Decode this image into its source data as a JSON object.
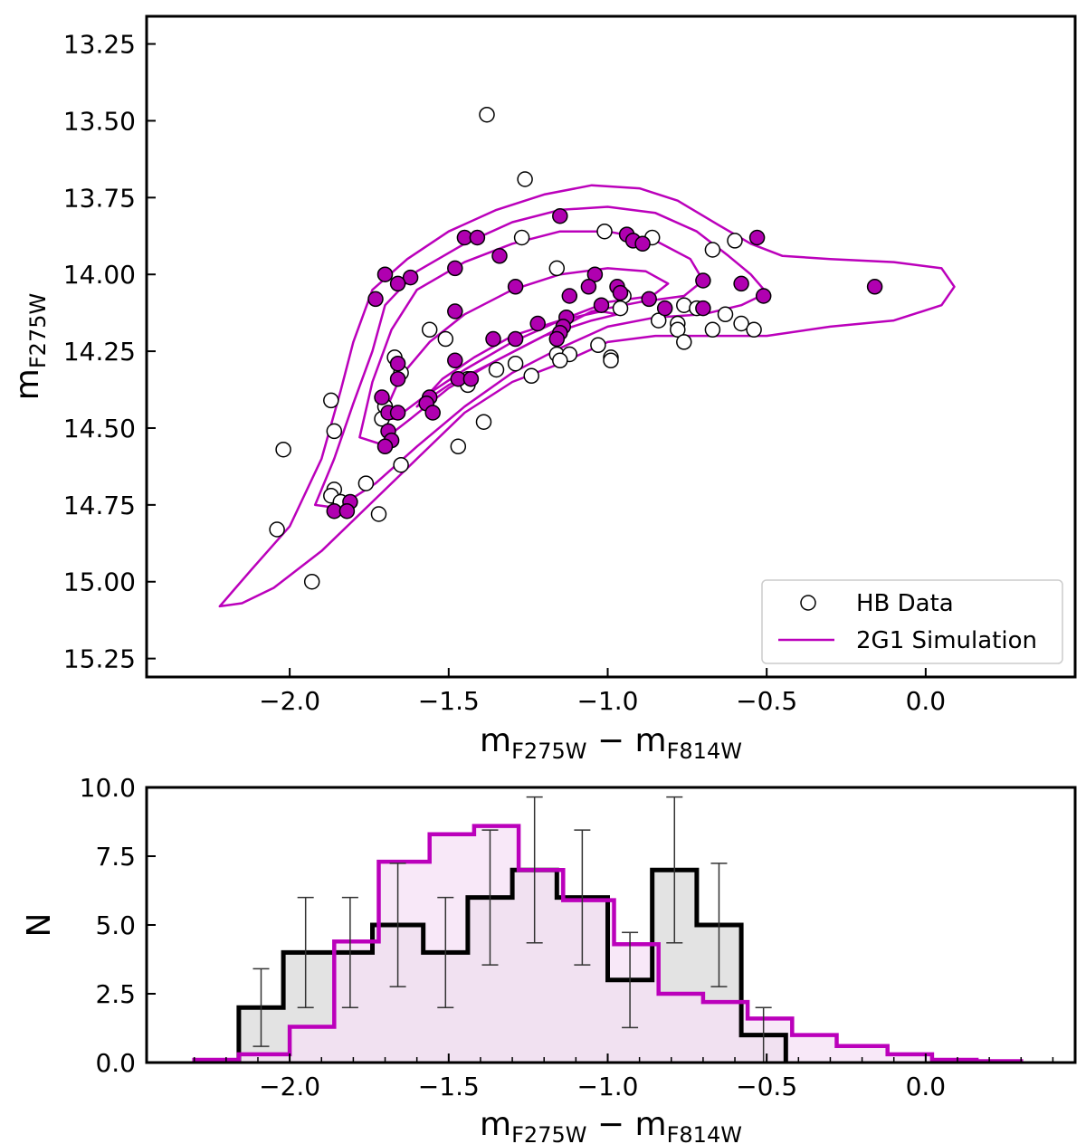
{
  "chart_data": [
    {
      "type": "scatter",
      "title": "",
      "xlabel": "m_F275W − m_F814W",
      "xlabel_main": "m",
      "xlabel_sub1": "F275W",
      "xlabel_sep": " − ",
      "xlabel_sub2": "F814W",
      "ylabel_main": "m",
      "ylabel_sub": "F275W",
      "xlim": [
        -2.45,
        0.47
      ],
      "ylim": [
        15.31,
        13.16
      ],
      "y_inverted": true,
      "xticks": [
        -2.0,
        -1.5,
        -1.0,
        -0.5,
        0.0
      ],
      "xtick_labels": [
        "−2.0",
        "−1.5",
        "−1.0",
        "−0.5",
        "0.0"
      ],
      "yticks": [
        13.25,
        13.5,
        13.75,
        14.0,
        14.25,
        14.5,
        14.75,
        15.0,
        15.25
      ],
      "ytick_labels": [
        "13.25",
        "13.50",
        "13.75",
        "14.00",
        "14.25",
        "14.50",
        "14.75",
        "15.00",
        "15.25"
      ],
      "legend": {
        "placement": "bottom-right",
        "entries": [
          {
            "label": "HB Data",
            "marker": "open-circle"
          },
          {
            "label": "2G1 Simulation",
            "marker": "line",
            "color": "#bb00bb"
          }
        ]
      },
      "colors": {
        "filled": "#b000b0",
        "contour": "#bb00bb"
      },
      "hb_open": [
        [
          -1.38,
          13.48
        ],
        [
          -1.26,
          13.69
        ],
        [
          -1.01,
          13.86
        ],
        [
          -1.27,
          13.88
        ],
        [
          -0.86,
          13.88
        ],
        [
          -0.6,
          13.89
        ],
        [
          -0.67,
          13.92
        ],
        [
          -1.16,
          13.98
        ],
        [
          -0.95,
          14.07
        ],
        [
          -0.96,
          14.11
        ],
        [
          -0.76,
          14.1
        ],
        [
          -0.72,
          14.11
        ],
        [
          -0.63,
          14.13
        ],
        [
          -0.84,
          14.15
        ],
        [
          -0.78,
          14.16
        ],
        [
          -0.58,
          14.16
        ],
        [
          -0.78,
          14.18
        ],
        [
          -0.67,
          14.18
        ],
        [
          -0.54,
          14.18
        ],
        [
          -1.56,
          14.18
        ],
        [
          -1.51,
          14.21
        ],
        [
          -0.76,
          14.22
        ],
        [
          -1.03,
          14.23
        ],
        [
          -1.16,
          14.26
        ],
        [
          -1.12,
          14.26
        ],
        [
          -1.15,
          14.28
        ],
        [
          -0.99,
          14.27
        ],
        [
          -0.99,
          14.28
        ],
        [
          -1.67,
          14.27
        ],
        [
          -1.65,
          14.32
        ],
        [
          -1.29,
          14.29
        ],
        [
          -1.35,
          14.31
        ],
        [
          -1.24,
          14.33
        ],
        [
          -1.44,
          14.34
        ],
        [
          -1.44,
          14.36
        ],
        [
          -1.87,
          14.41
        ],
        [
          -1.7,
          14.43
        ],
        [
          -1.71,
          14.47
        ],
        [
          -1.39,
          14.48
        ],
        [
          -1.86,
          14.51
        ],
        [
          -1.47,
          14.56
        ],
        [
          -2.02,
          14.57
        ],
        [
          -1.65,
          14.62
        ],
        [
          -1.76,
          14.68
        ],
        [
          -1.86,
          14.7
        ],
        [
          -1.87,
          14.72
        ],
        [
          -1.84,
          14.74
        ],
        [
          -1.72,
          14.78
        ],
        [
          -2.04,
          14.83
        ],
        [
          -1.93,
          15.0
        ]
      ],
      "hb_filled": [
        [
          -1.15,
          13.81
        ],
        [
          -0.94,
          13.87
        ],
        [
          -1.45,
          13.88
        ],
        [
          -1.41,
          13.88
        ],
        [
          -0.92,
          13.89
        ],
        [
          -0.89,
          13.9
        ],
        [
          -0.53,
          13.88
        ],
        [
          -1.34,
          13.94
        ],
        [
          -1.48,
          13.98
        ],
        [
          -1.7,
          14.0
        ],
        [
          -1.62,
          14.01
        ],
        [
          -1.66,
          14.03
        ],
        [
          -1.04,
          14.0
        ],
        [
          -0.7,
          14.02
        ],
        [
          -0.58,
          14.03
        ],
        [
          -1.29,
          14.04
        ],
        [
          -1.06,
          14.04
        ],
        [
          -0.97,
          14.04
        ],
        [
          -0.96,
          14.06
        ],
        [
          -0.51,
          14.07
        ],
        [
          -1.73,
          14.08
        ],
        [
          -1.12,
          14.07
        ],
        [
          -0.16,
          14.04
        ],
        [
          -0.87,
          14.08
        ],
        [
          -1.02,
          14.1
        ],
        [
          -0.82,
          14.11
        ],
        [
          -0.7,
          14.11
        ],
        [
          -1.48,
          14.12
        ],
        [
          -1.13,
          14.14
        ],
        [
          -1.14,
          14.17
        ],
        [
          -1.22,
          14.16
        ],
        [
          -1.15,
          14.19
        ],
        [
          -1.36,
          14.21
        ],
        [
          -1.29,
          14.21
        ],
        [
          -1.16,
          14.21
        ],
        [
          -1.48,
          14.28
        ],
        [
          -1.66,
          14.29
        ],
        [
          -1.47,
          14.34
        ],
        [
          -1.43,
          14.34
        ],
        [
          -1.66,
          14.34
        ],
        [
          -1.71,
          14.4
        ],
        [
          -1.56,
          14.4
        ],
        [
          -1.57,
          14.42
        ],
        [
          -1.69,
          14.45
        ],
        [
          -1.66,
          14.45
        ],
        [
          -1.55,
          14.45
        ],
        [
          -1.69,
          14.51
        ],
        [
          -1.68,
          14.54
        ],
        [
          -1.7,
          14.56
        ],
        [
          -1.81,
          14.74
        ],
        [
          -1.86,
          14.77
        ],
        [
          -1.82,
          14.77
        ]
      ],
      "contours": [
        [
          [
            -2.22,
            15.08
          ],
          [
            -2.12,
            14.96
          ],
          [
            -2.0,
            14.82
          ],
          [
            -1.9,
            14.6
          ],
          [
            -1.84,
            14.38
          ],
          [
            -1.8,
            14.22
          ],
          [
            -1.74,
            14.05
          ],
          [
            -1.63,
            13.95
          ],
          [
            -1.5,
            13.86
          ],
          [
            -1.35,
            13.79
          ],
          [
            -1.2,
            13.74
          ],
          [
            -1.05,
            13.71
          ],
          [
            -0.9,
            13.72
          ],
          [
            -0.78,
            13.76
          ],
          [
            -0.65,
            13.84
          ],
          [
            -0.55,
            13.9
          ],
          [
            -0.45,
            13.94
          ],
          [
            -0.3,
            13.95
          ],
          [
            -0.1,
            13.96
          ],
          [
            0.05,
            13.98
          ],
          [
            0.09,
            14.04
          ],
          [
            0.05,
            14.1
          ],
          [
            -0.1,
            14.15
          ],
          [
            -0.3,
            14.17
          ],
          [
            -0.5,
            14.2
          ],
          [
            -0.7,
            14.2
          ],
          [
            -0.85,
            14.2
          ],
          [
            -1.0,
            14.22
          ],
          [
            -1.15,
            14.29
          ],
          [
            -1.3,
            14.35
          ],
          [
            -1.45,
            14.45
          ],
          [
            -1.6,
            14.6
          ],
          [
            -1.75,
            14.75
          ],
          [
            -1.9,
            14.9
          ],
          [
            -2.05,
            15.02
          ],
          [
            -2.15,
            15.07
          ],
          [
            -2.22,
            15.08
          ]
        ],
        [
          [
            -1.92,
            14.75
          ],
          [
            -1.86,
            14.6
          ],
          [
            -1.8,
            14.42
          ],
          [
            -1.74,
            14.25
          ],
          [
            -1.7,
            14.1
          ],
          [
            -1.6,
            13.99
          ],
          [
            -1.45,
            13.9
          ],
          [
            -1.3,
            13.83
          ],
          [
            -1.15,
            13.79
          ],
          [
            -1.0,
            13.78
          ],
          [
            -0.85,
            13.8
          ],
          [
            -0.72,
            13.86
          ],
          [
            -0.62,
            13.94
          ],
          [
            -0.55,
            14.0
          ],
          [
            -0.5,
            14.06
          ],
          [
            -0.58,
            14.1
          ],
          [
            -0.7,
            14.13
          ],
          [
            -0.85,
            14.14
          ],
          [
            -1.0,
            14.17
          ],
          [
            -1.15,
            14.24
          ],
          [
            -1.3,
            14.32
          ],
          [
            -1.45,
            14.43
          ],
          [
            -1.6,
            14.56
          ],
          [
            -1.73,
            14.68
          ],
          [
            -1.85,
            14.76
          ],
          [
            -1.92,
            14.75
          ]
        ],
        [
          [
            -1.78,
            14.53
          ],
          [
            -1.74,
            14.35
          ],
          [
            -1.68,
            14.18
          ],
          [
            -1.6,
            14.05
          ],
          [
            -1.45,
            13.96
          ],
          [
            -1.3,
            13.9
          ],
          [
            -1.15,
            13.86
          ],
          [
            -1.0,
            13.86
          ],
          [
            -0.85,
            13.89
          ],
          [
            -0.74,
            13.95
          ],
          [
            -0.7,
            14.02
          ],
          [
            -0.76,
            14.07
          ],
          [
            -0.9,
            14.09
          ],
          [
            -1.05,
            14.12
          ],
          [
            -1.2,
            14.2
          ],
          [
            -1.35,
            14.28
          ],
          [
            -1.5,
            14.37
          ],
          [
            -1.62,
            14.47
          ],
          [
            -1.72,
            14.55
          ],
          [
            -1.78,
            14.53
          ]
        ],
        [
          [
            -1.71,
            14.47
          ],
          [
            -1.65,
            14.33
          ],
          [
            -1.56,
            14.22
          ],
          [
            -1.45,
            14.13
          ],
          [
            -1.3,
            14.05
          ],
          [
            -1.15,
            14.0
          ],
          [
            -1.0,
            13.98
          ],
          [
            -0.88,
            13.99
          ],
          [
            -0.81,
            14.03
          ],
          [
            -0.86,
            14.07
          ],
          [
            -1.0,
            14.09
          ],
          [
            -1.15,
            14.15
          ],
          [
            -1.3,
            14.22
          ],
          [
            -1.45,
            14.31
          ],
          [
            -1.58,
            14.4
          ],
          [
            -1.67,
            14.47
          ],
          [
            -1.71,
            14.47
          ]
        ],
        [
          [
            -1.6,
            14.43
          ],
          [
            -1.52,
            14.34
          ],
          [
            -1.42,
            14.27
          ],
          [
            -1.3,
            14.2
          ],
          [
            -1.15,
            14.15
          ],
          [
            -1.02,
            14.12
          ],
          [
            -0.97,
            14.13
          ],
          [
            -1.05,
            14.15
          ],
          [
            -1.2,
            14.2
          ],
          [
            -1.35,
            14.28
          ],
          [
            -1.5,
            14.36
          ],
          [
            -1.6,
            14.43
          ]
        ]
      ]
    },
    {
      "type": "histogram",
      "title": "",
      "xlabel_main": "m",
      "xlabel_sub1": "F275W",
      "xlabel_sep": " − ",
      "xlabel_sub2": "F814W",
      "ylabel": "N",
      "xlim": [
        -2.45,
        0.47
      ],
      "ylim": [
        0.0,
        10.0
      ],
      "xticks": [
        -2.0,
        -1.5,
        -1.0,
        -0.5,
        0.0
      ],
      "xtick_labels": [
        "−2.0",
        "−1.5",
        "−1.0",
        "−0.5",
        "0.0"
      ],
      "yticks": [
        0.0,
        2.5,
        5.0,
        7.5,
        10.0
      ],
      "ytick_labels": [
        "0.0",
        "2.5",
        "5.0",
        "7.5",
        "10.0"
      ],
      "minor_xticks": [
        -2.3,
        -2.2,
        -2.1,
        -2.0,
        -1.9,
        -1.8,
        -1.7,
        -1.6,
        -1.5,
        -1.4,
        -1.3,
        -1.2,
        -1.1,
        -1.0,
        -0.9,
        -0.8,
        -0.7,
        -0.6,
        -0.5,
        -0.4,
        -0.3,
        -0.2,
        -0.1,
        0.0,
        0.1,
        0.2,
        0.3,
        0.4
      ],
      "series": [
        {
          "name": "HB Data",
          "color": "#000000",
          "fill": "#e3e3e3",
          "bin_edges": [
            -2.16,
            -2.02,
            -1.88,
            -1.74,
            -1.58,
            -1.44,
            -1.3,
            -1.16,
            -1.0,
            -0.86,
            -0.72,
            -0.58,
            -0.44
          ],
          "counts": [
            2,
            4,
            4,
            5,
            4,
            6,
            7,
            6,
            3,
            7,
            5,
            1
          ],
          "errors": [
            1.41,
            2.0,
            2.0,
            2.24,
            2.0,
            2.45,
            2.65,
            2.45,
            1.73,
            2.65,
            2.24,
            1.0
          ]
        },
        {
          "name": "2G1 Simulation",
          "color": "#bb00bb",
          "fill": "#f6e0f6",
          "bin_edges": [
            -2.3,
            -2.16,
            -2.0,
            -1.86,
            -1.72,
            -1.56,
            -1.42,
            -1.28,
            -1.14,
            -0.98,
            -0.84,
            -0.7,
            -0.56,
            -0.42,
            -0.28,
            -0.12,
            0.02,
            0.16,
            0.3
          ],
          "counts": [
            0.1,
            0.3,
            1.3,
            4.4,
            7.3,
            8.3,
            8.6,
            7.0,
            5.9,
            4.3,
            2.5,
            2.2,
            1.6,
            1.0,
            0.6,
            0.3,
            0.1,
            0.05
          ]
        }
      ]
    }
  ]
}
